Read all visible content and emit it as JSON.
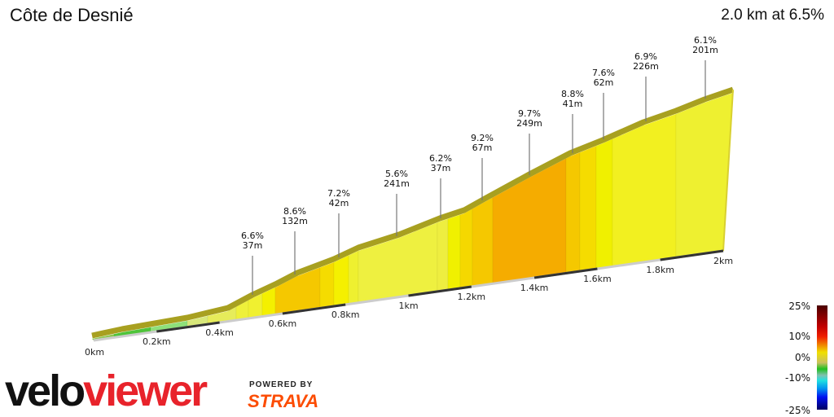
{
  "title": "Côte de Desnié",
  "summary": "2.0 km at 6.5%",
  "chart_data": {
    "type": "area",
    "title": "Côte de Desnié",
    "x_ticks": [
      "0km",
      "0.2km",
      "0.4km",
      "0.6km",
      "0.8km",
      "1km",
      "1.2km",
      "1.4km",
      "1.6km",
      "1.8km",
      "2km"
    ],
    "xlim": [
      0,
      2
    ],
    "segment_annotations": [
      {
        "grade": "6.6%",
        "length": "37m"
      },
      {
        "grade": "8.6%",
        "length": "132m"
      },
      {
        "grade": "7.2%",
        "length": "42m"
      },
      {
        "grade": "5.6%",
        "length": "241m"
      },
      {
        "grade": "6.2%",
        "length": "37m"
      },
      {
        "grade": "9.2%",
        "length": "67m"
      },
      {
        "grade": "9.7%",
        "length": "249m"
      },
      {
        "grade": "8.8%",
        "length": "41m"
      },
      {
        "grade": "7.6%",
        "length": "62m"
      },
      {
        "grade": "6.9%",
        "length": "226m"
      },
      {
        "grade": "6.1%",
        "length": "201m"
      }
    ],
    "legend": {
      "labels": [
        "25%",
        "10%",
        "0%",
        "-10%",
        "-25%"
      ],
      "colors": [
        "#4a0000",
        "#e02000",
        "#f0e000",
        "#20c020",
        "#20e0e0",
        "#0030f0",
        "#000060"
      ]
    }
  },
  "branding": {
    "logo_part1": "velo",
    "logo_part2": "viewer",
    "powered_by": "POWERED BY",
    "strava": "STRAVA"
  }
}
